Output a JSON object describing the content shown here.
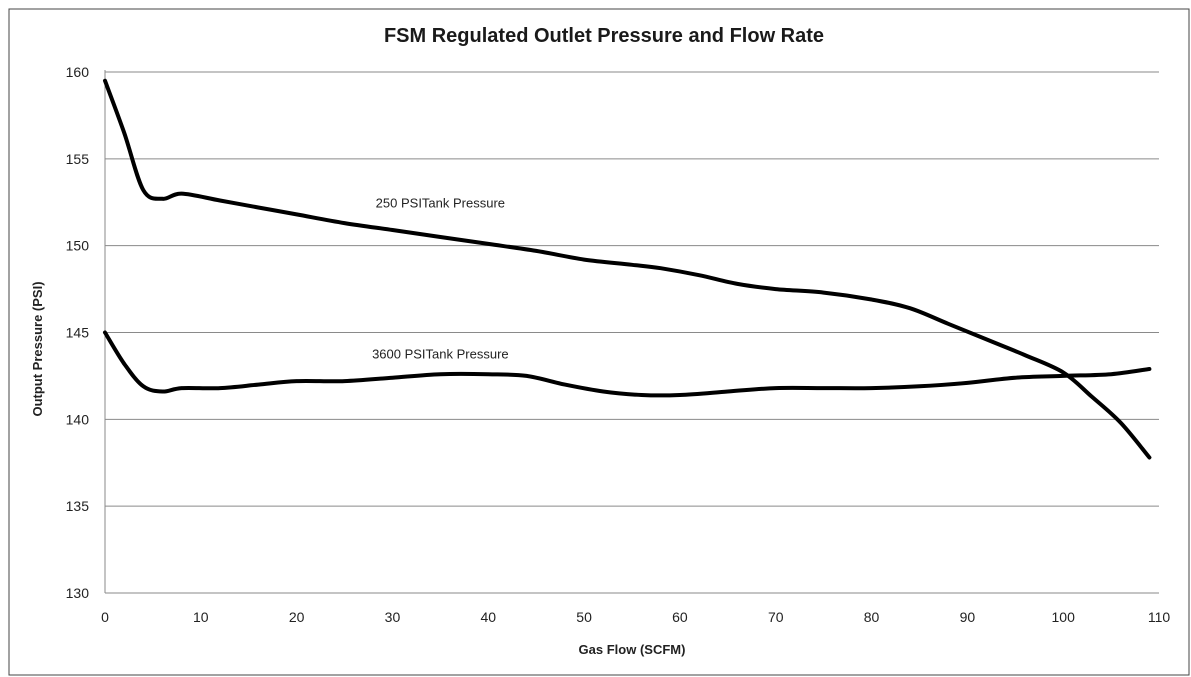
{
  "chart_data": {
    "type": "line",
    "title": "FSM Regulated Outlet Pressure and Flow Rate",
    "xlabel": "Gas Flow  (SCFM)",
    "ylabel": "Output Pressure (PSI)",
    "xlim": [
      0,
      110
    ],
    "ylim": [
      130,
      160
    ],
    "xticks": [
      0,
      10,
      20,
      30,
      40,
      50,
      60,
      70,
      80,
      90,
      100,
      110
    ],
    "yticks": [
      130,
      135,
      140,
      145,
      150,
      155,
      160
    ],
    "grid": "horizontal",
    "legend": "none",
    "annotations": [
      {
        "text": "250 PSITank Pressure",
        "x": 35,
        "y": 152.2
      },
      {
        "text": "3600 PSITank Pressure",
        "x": 35,
        "y": 143.5
      }
    ],
    "series": [
      {
        "x": [
          0,
          2,
          4,
          6,
          8,
          12,
          16,
          20,
          25,
          30,
          35,
          40,
          45,
          50,
          55,
          58,
          62,
          66,
          70,
          75,
          80,
          84,
          88,
          92,
          96,
          100,
          103,
          106,
          109
        ],
        "y": [
          159.5,
          156.5,
          153.2,
          152.7,
          153.0,
          152.6,
          152.2,
          151.8,
          151.3,
          150.9,
          150.5,
          150.1,
          149.7,
          149.2,
          148.9,
          148.7,
          148.3,
          147.8,
          147.5,
          147.3,
          146.9,
          146.4,
          145.5,
          144.6,
          143.7,
          142.7,
          141.3,
          139.8,
          137.8
        ]
      },
      {
        "x": [
          0,
          2,
          4,
          6,
          8,
          12,
          16,
          20,
          25,
          30,
          35,
          40,
          44,
          48,
          52,
          56,
          60,
          65,
          70,
          75,
          80,
          85,
          90,
          95,
          100,
          105,
          109
        ],
        "y": [
          145.0,
          143.2,
          141.9,
          141.6,
          141.8,
          141.8,
          142.0,
          142.2,
          142.2,
          142.4,
          142.6,
          142.6,
          142.5,
          142.0,
          141.6,
          141.4,
          141.4,
          141.6,
          141.8,
          141.8,
          141.8,
          141.9,
          142.1,
          142.4,
          142.5,
          142.6,
          142.9
        ]
      }
    ]
  }
}
